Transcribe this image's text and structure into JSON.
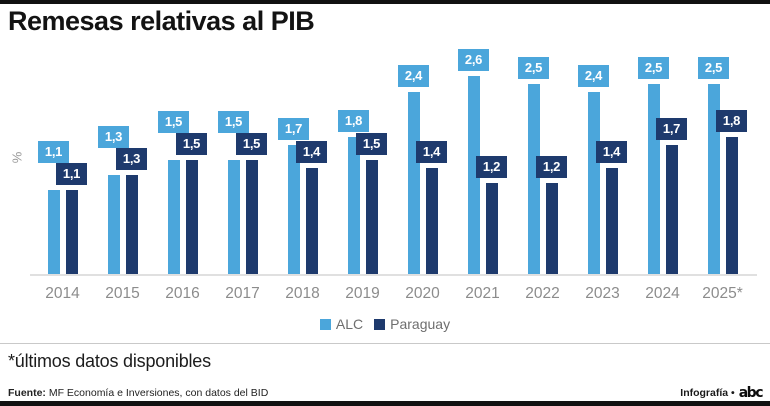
{
  "title": "Remesas relativas al PIB",
  "footnote": "*últimos datos disponibles",
  "source": {
    "label": "Fuente:",
    "text": " MF Economía e Inversiones, con datos del BID"
  },
  "credit": {
    "text": "Infografía •",
    "logo": "abc"
  },
  "colors": {
    "alc": "#4BA6DB",
    "paraguay": "#1E3A6D",
    "axis_line": "#e0e0e0",
    "year_label": "#8c8c8c",
    "legend_text": "#6e6e6e",
    "value_text": "#ffffff"
  },
  "chart_data": {
    "type": "bar",
    "title": "Remesas relativas al PIB",
    "xlabel": "",
    "ylabel": "%",
    "unit": "% of GDP",
    "decimal_separator": ",",
    "grid": false,
    "legend_position": "bottom",
    "ylim": [
      0,
      2.8
    ],
    "categories": [
      "2014",
      "2015",
      "2016",
      "2017",
      "2018",
      "2019",
      "2020",
      "2021",
      "2022",
      "2023",
      "2024",
      "2025*"
    ],
    "series": [
      {
        "name": "ALC",
        "color": "#4BA6DB",
        "values": [
          1.1,
          1.3,
          1.5,
          1.5,
          1.7,
          1.8,
          2.4,
          2.6,
          2.5,
          2.4,
          2.5,
          2.5
        ]
      },
      {
        "name": "Paraguay",
        "color": "#1E3A6D",
        "values": [
          1.1,
          1.3,
          1.5,
          1.5,
          1.4,
          1.5,
          1.4,
          1.2,
          1.2,
          1.4,
          1.7,
          1.8
        ]
      }
    ]
  }
}
